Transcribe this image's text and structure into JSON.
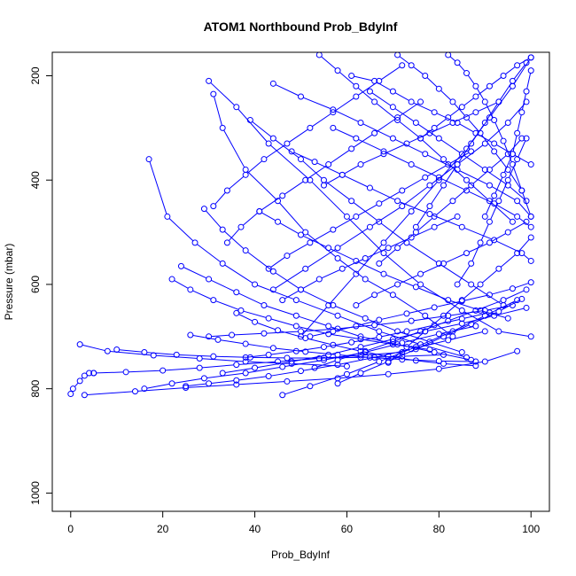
{
  "chart_data": {
    "type": "line",
    "title": "ATOM1 Northbound Prob_BdyInf",
    "xlabel": "Prob_BdyInf",
    "ylabel": "Pressure (mbar)",
    "xlim": [
      -4,
      104
    ],
    "ylim": [
      1035,
      155
    ],
    "y_axis_inverted": true,
    "x_ticks": [
      0,
      20,
      40,
      60,
      80,
      100
    ],
    "x_tick_labels": [
      "0",
      "20",
      "40",
      "60",
      "80",
      "100"
    ],
    "y_ticks": [
      200,
      400,
      600,
      800,
      1000
    ],
    "y_tick_labels": [
      "200",
      "400",
      "600",
      "800",
      "1000"
    ],
    "grid": false,
    "legend": "none",
    "marker": "open-circle",
    "line_color": "#0000ff",
    "series": [
      {
        "x": [
          0,
          0.5,
          2,
          3,
          4,
          5
        ],
        "y": [
          810,
          800,
          785,
          775,
          770,
          770
        ]
      },
      {
        "x": [
          2,
          8,
          18,
          28,
          38,
          48,
          60
        ],
        "y": [
          715,
          728,
          736,
          742,
          748,
          752,
          757
        ]
      },
      {
        "x": [
          3,
          14,
          25,
          36,
          47,
          58,
          69,
          80,
          90,
          97
        ],
        "y": [
          812,
          805,
          798,
          792,
          786,
          780,
          772,
          762,
          748,
          728
        ]
      },
      {
        "x": [
          16,
          22,
          29,
          38,
          46,
          55,
          64,
          72,
          80,
          88
        ],
        "y": [
          800,
          790,
          780,
          770,
          758,
          745,
          730,
          712,
          695,
          680
        ]
      },
      {
        "x": [
          30,
          35,
          42,
          50,
          58,
          66,
          74,
          82,
          90,
          96
        ],
        "y": [
          700,
          697,
          694,
          690,
          685,
          678,
          670,
          660,
          650,
          640
        ]
      },
      {
        "x": [
          33,
          40,
          48,
          56,
          63,
          70,
          77,
          85,
          92,
          99
        ],
        "y": [
          770,
          760,
          748,
          735,
          720,
          705,
          690,
          675,
          660,
          645
        ]
      },
      {
        "x": [
          46,
          52,
          60,
          67,
          75,
          83,
          90,
          97
        ],
        "y": [
          812,
          795,
          772,
          748,
          720,
          690,
          660,
          630
        ]
      },
      {
        "x": [
          17,
          21,
          27,
          33,
          40,
          49,
          58,
          67,
          76,
          86
        ],
        "y": [
          360,
          470,
          520,
          560,
          600,
          630,
          660,
          690,
          715,
          740
        ]
      },
      {
        "x": [
          30,
          36,
          43,
          52,
          60,
          68,
          76,
          85,
          93,
          100
        ],
        "y": [
          210,
          260,
          330,
          400,
          470,
          540,
          600,
          650,
          690,
          700
        ]
      },
      {
        "x": [
          31,
          33,
          38,
          45,
          51,
          58,
          64,
          70,
          77,
          83
        ],
        "y": [
          235,
          300,
          380,
          440,
          500,
          550,
          590,
          620,
          660,
          700
        ]
      },
      {
        "x": [
          39,
          44,
          50,
          55,
          61,
          67,
          73,
          80,
          87,
          94
        ],
        "y": [
          285,
          320,
          360,
          400,
          440,
          480,
          520,
          560,
          600,
          640
        ]
      },
      {
        "x": [
          44,
          50,
          57,
          63,
          70,
          77,
          84,
          91,
          97,
          100
        ],
        "y": [
          215,
          240,
          265,
          290,
          320,
          350,
          380,
          410,
          440,
          470
        ]
      },
      {
        "x": [
          54,
          58,
          62,
          66,
          71,
          76,
          81,
          86,
          91,
          96
        ],
        "y": [
          160,
          190,
          220,
          250,
          285,
          320,
          360,
          400,
          440,
          480
        ]
      },
      {
        "x": [
          61,
          66,
          70,
          74,
          79,
          84,
          88,
          92,
          96,
          100
        ],
        "y": [
          200,
          210,
          230,
          250,
          270,
          290,
          310,
          330,
          350,
          370
        ]
      },
      {
        "x": [
          71,
          74,
          77,
          80,
          83,
          86,
          89,
          92,
          95,
          98
        ],
        "y": [
          160,
          180,
          200,
          225,
          250,
          280,
          310,
          345,
          380,
          420
        ]
      },
      {
        "x": [
          82,
          84,
          86,
          88,
          90,
          92,
          94,
          96,
          98,
          100
        ],
        "y": [
          160,
          175,
          195,
          220,
          250,
          285,
          325,
          370,
          420,
          470
        ]
      },
      {
        "x": [
          100,
          96,
          91,
          86,
          80,
          74,
          68,
          62,
          56,
          50
        ],
        "y": [
          165,
          220,
          280,
          340,
          400,
          460,
          520,
          580,
          640,
          700
        ]
      },
      {
        "x": [
          99,
          95,
          90,
          84,
          78,
          72,
          65,
          58,
          51,
          44
        ],
        "y": [
          250,
          290,
          330,
          370,
          410,
          450,
          490,
          530,
          570,
          610
        ]
      },
      {
        "x": [
          22,
          26,
          31,
          37,
          43,
          49,
          56,
          63,
          70,
          78
        ],
        "y": [
          590,
          610,
          630,
          650,
          665,
          680,
          695,
          705,
          715,
          725
        ]
      },
      {
        "x": [
          24,
          30,
          36,
          42,
          49,
          56,
          63,
          71,
          79,
          87
        ],
        "y": [
          565,
          590,
          615,
          640,
          660,
          680,
          700,
          715,
          730,
          745
        ]
      },
      {
        "x": [
          29,
          33,
          38,
          44,
          50,
          57,
          64,
          71,
          78,
          85
        ],
        "y": [
          455,
          495,
          535,
          575,
          610,
          640,
          665,
          690,
          710,
          730
        ]
      },
      {
        "x": [
          41,
          45,
          50,
          56,
          62,
          68,
          75,
          82,
          89,
          95
        ],
        "y": [
          460,
          480,
          505,
          530,
          555,
          580,
          605,
          630,
          650,
          665
        ]
      },
      {
        "x": [
          48,
          53,
          59,
          65,
          71,
          78,
          85,
          92,
          98,
          100
        ],
        "y": [
          345,
          365,
          390,
          415,
          440,
          465,
          490,
          515,
          540,
          555
        ]
      },
      {
        "x": [
          57,
          62,
          68,
          74,
          80,
          86,
          92,
          97,
          100
        ],
        "y": [
          300,
          320,
          345,
          370,
          395,
          420,
          445,
          470,
          490
        ]
      },
      {
        "x": [
          65,
          70,
          75,
          80,
          85,
          90,
          95,
          99
        ],
        "y": [
          230,
          260,
          290,
          320,
          350,
          380,
          410,
          440
        ]
      },
      {
        "x": [
          36,
          40,
          45,
          51,
          57,
          63,
          69,
          75,
          81,
          88
        ],
        "y": [
          655,
          672,
          688,
          703,
          716,
          728,
          738,
          746,
          752,
          756
        ]
      },
      {
        "x": [
          26,
          32,
          38,
          44,
          51,
          58,
          65,
          72,
          80,
          88
        ],
        "y": [
          697,
          706,
          714,
          722,
          729,
          735,
          740,
          744,
          747,
          748
        ]
      },
      {
        "x": [
          38,
          43,
          49,
          55,
          61,
          67,
          73,
          79,
          85,
          91
        ],
        "y": [
          740,
          735,
          728,
          720,
          711,
          701,
          690,
          678,
          666,
          654
        ]
      },
      {
        "x": [
          52,
          57,
          62,
          67,
          73,
          79,
          85,
          91,
          96,
          100
        ],
        "y": [
          700,
          690,
          680,
          668,
          656,
          644,
          632,
          620,
          608,
          596
        ]
      },
      {
        "x": [
          62,
          66,
          71,
          76,
          81,
          86,
          91,
          95,
          99
        ],
        "y": [
          640,
          620,
          600,
          580,
          560,
          540,
          520,
          500,
          480
        ]
      },
      {
        "x": [
          67,
          71,
          75,
          79,
          83,
          87,
          91,
          95,
          98
        ],
        "y": [
          560,
          530,
          500,
          470,
          440,
          410,
          380,
          350,
          320
        ]
      },
      {
        "x": [
          75,
          78,
          81,
          84,
          87,
          90,
          93,
          96,
          99
        ],
        "y": [
          490,
          450,
          410,
          370,
          330,
          290,
          250,
          210,
          175
        ]
      },
      {
        "x": [
          43,
          47,
          52,
          57,
          62,
          67,
          72,
          77,
          82,
          87
        ],
        "y": [
          570,
          545,
          520,
          495,
          470,
          445,
          420,
          395,
          370,
          345
        ]
      },
      {
        "x": [
          34,
          37,
          41,
          46,
          51,
          56,
          61,
          66,
          71,
          76
        ],
        "y": [
          520,
          490,
          460,
          430,
          400,
          370,
          340,
          310,
          280,
          250
        ]
      },
      {
        "x": [
          31,
          34,
          38,
          42,
          47,
          52,
          57,
          62,
          67,
          72
        ],
        "y": [
          450,
          420,
          390,
          360,
          330,
          300,
          270,
          240,
          210,
          180
        ]
      },
      {
        "x": [
          53,
          58,
          64,
          70,
          76,
          82,
          88,
          94,
          99
        ],
        "y": [
          760,
          745,
          728,
          710,
          690,
          670,
          650,
          630,
          610
        ]
      },
      {
        "x": [
          58,
          63,
          69,
          75,
          81,
          87,
          93,
          98
        ],
        "y": [
          790,
          770,
          748,
          724,
          700,
          676,
          652,
          628
        ]
      },
      {
        "x": [
          69,
          73,
          77,
          81,
          85,
          89,
          93,
          97,
          100
        ],
        "y": [
          750,
          720,
          690,
          660,
          630,
          600,
          570,
          540,
          510
        ]
      },
      {
        "x": [
          84,
          87,
          89,
          91,
          93,
          95,
          97,
          99
        ],
        "y": [
          600,
          560,
          520,
          480,
          440,
          400,
          360,
          320
        ]
      },
      {
        "x": [
          90,
          92,
          94,
          96,
          97,
          98,
          99,
          100
        ],
        "y": [
          470,
          430,
          390,
          350,
          310,
          270,
          230,
          190
        ]
      },
      {
        "x": [
          46,
          50,
          54,
          59,
          64,
          69,
          74,
          79,
          84
        ],
        "y": [
          630,
          610,
          590,
          570,
          550,
          530,
          510,
          490,
          470
        ]
      },
      {
        "x": [
          55,
          59,
          63,
          68,
          73,
          78,
          83,
          88,
          93
        ],
        "y": [
          410,
          390,
          370,
          350,
          330,
          310,
          290,
          270,
          250
        ]
      },
      {
        "x": [
          76,
          79,
          82,
          85,
          88,
          91,
          94,
          97,
          100
        ],
        "y": [
          320,
          300,
          280,
          260,
          240,
          220,
          200,
          180,
          165
        ]
      },
      {
        "x": [
          10,
          16,
          23,
          31,
          39,
          47,
          55,
          63,
          72,
          81
        ],
        "y": [
          725,
          730,
          735,
          738,
          740,
          741,
          741,
          740,
          738,
          735
        ]
      },
      {
        "x": [
          5,
          12,
          20,
          28,
          36,
          45,
          54,
          63,
          72
        ],
        "y": [
          770,
          768,
          765,
          760,
          754,
          748,
          742,
          736,
          730
        ]
      },
      {
        "x": [
          25,
          30,
          36,
          43,
          50,
          58,
          66,
          74,
          82,
          90
        ],
        "y": [
          795,
          790,
          784,
          776,
          766,
          754,
          740,
          724,
          707,
          690
        ]
      }
    ]
  }
}
